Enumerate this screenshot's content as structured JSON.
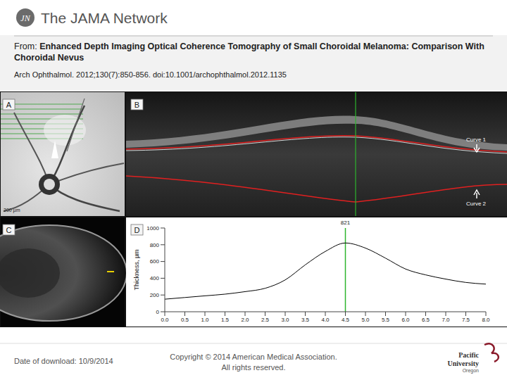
{
  "header": {
    "logo_mark": "JN",
    "network": "The JAMA Network",
    "from_label": "From:",
    "title": "Enhanced Depth Imaging Optical Coherence Tomography of Small Choroidal Melanoma:  Comparison With Choroidal Nevus",
    "citation": "Arch Ophthalmol. 2012;130(7):850-856. doi:10.1001/archophthalmol.2012.1135"
  },
  "panels": {
    "A": {
      "label": "A",
      "scale": "200 µm"
    },
    "B": {
      "label": "B",
      "curves": [
        "Curve 1",
        "Curve 2"
      ]
    },
    "C": {
      "label": "C"
    },
    "D": {
      "label": "D"
    }
  },
  "chart_data": {
    "type": "line",
    "y_label": "Thickness, µm",
    "x": [
      0,
      0.5,
      1,
      1.5,
      2,
      2.5,
      3,
      3.5,
      4,
      4.5,
      5,
      5.5,
      6,
      6.5,
      7,
      7.5,
      8
    ],
    "values": [
      150,
      170,
      190,
      210,
      240,
      280,
      380,
      560,
      720,
      821,
      760,
      640,
      510,
      440,
      390,
      350,
      330
    ],
    "color": "#000000",
    "xlim": [
      0,
      8
    ],
    "xticks": [
      {
        "value": 0,
        "label": "0.0"
      },
      0.5,
      {
        "value": 1,
        "label": "1.0"
      },
      1.5,
      {
        "value": 2,
        "label": "2.0"
      },
      2.5,
      {
        "value": 3,
        "label": "3.0"
      },
      3.5,
      {
        "value": 4,
        "label": "4.0"
      },
      4.5,
      {
        "value": 5,
        "label": "5.0"
      },
      5.5,
      {
        "value": 6,
        "label": "6.0"
      },
      6.5,
      {
        "value": 7,
        "label": "7.0"
      },
      7.5,
      {
        "value": 8,
        "label": "8.0"
      }
    ],
    "ylim": [
      0,
      1000
    ],
    "yticks": [
      0,
      200,
      400,
      600,
      800,
      1000
    ],
    "grid": false,
    "annotations": [
      {
        "x": 4.5,
        "label": "821",
        "color": "#2db52d"
      }
    ]
  },
  "footer": {
    "date": "Date of download:  10/9/2014",
    "copyright": [
      "Copyright © 2014 American Medical Association.",
      "All rights reserved."
    ],
    "logo": [
      "Pacific",
      "University",
      "Oregon"
    ]
  }
}
